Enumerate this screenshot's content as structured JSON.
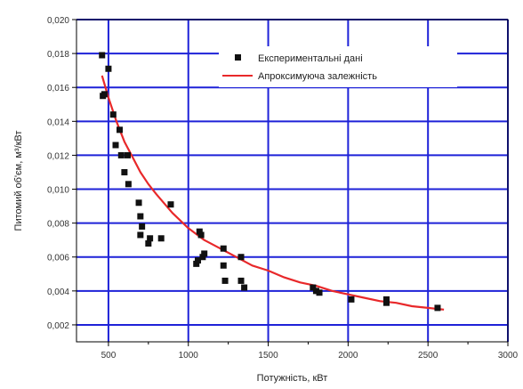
{
  "chart_data": {
    "type": "scatter",
    "title": "",
    "xlabel": "Потужність, кВт",
    "ylabel": "Питомий об'єм, м³/кВт",
    "xlim": [
      300,
      3000
    ],
    "ylim": [
      0.001,
      0.02
    ],
    "xticks": [
      "500",
      "1000",
      "1500",
      "2000",
      "2500",
      "3000"
    ],
    "yticks": [
      "0,002",
      "0,004",
      "0,006",
      "0,008",
      "0,010",
      "0,012",
      "0,014",
      "0,016",
      "0,018",
      "0,020"
    ],
    "grid": true,
    "legend_position": "top-right",
    "series": [
      {
        "name": "Експериментальні дані",
        "type": "scatter",
        "marker": "square",
        "color": "#111111",
        "x": [
          460,
          465,
          475,
          500,
          530,
          545,
          570,
          580,
          600,
          620,
          625,
          690,
          700,
          700,
          710,
          750,
          760,
          830,
          890,
          1050,
          1060,
          1070,
          1080,
          1090,
          1100,
          1220,
          1220,
          1230,
          1330,
          1330,
          1350,
          1780,
          1800,
          1820,
          2020,
          2240,
          2240,
          2560
        ],
        "y": [
          0.0179,
          0.0155,
          0.0156,
          0.0171,
          0.0144,
          0.0126,
          0.0135,
          0.012,
          0.011,
          0.012,
          0.0103,
          0.0092,
          0.0084,
          0.0073,
          0.0078,
          0.0068,
          0.0071,
          0.0071,
          0.0091,
          0.0056,
          0.0058,
          0.0075,
          0.0073,
          0.006,
          0.0062,
          0.0065,
          0.0055,
          0.0046,
          0.0046,
          0.006,
          0.0042,
          0.0042,
          0.004,
          0.0039,
          0.0035,
          0.0035,
          0.0033,
          0.003
        ]
      },
      {
        "name": "Апроксимуюча залежність",
        "type": "line",
        "color": "#e8282a",
        "x": [
          460,
          500,
          550,
          600,
          650,
          700,
          750,
          800,
          900,
          1000,
          1100,
          1200,
          1300,
          1400,
          1500,
          1600,
          1700,
          1800,
          1900,
          2000,
          2100,
          2200,
          2300,
          2400,
          2500,
          2600
        ],
        "y": [
          0.0167,
          0.0154,
          0.014,
          0.0128,
          0.0119,
          0.011,
          0.0103,
          0.0097,
          0.0086,
          0.0077,
          0.007,
          0.0065,
          0.006,
          0.0055,
          0.0052,
          0.0048,
          0.0045,
          0.0043,
          0.004,
          0.0038,
          0.0036,
          0.0034,
          0.0033,
          0.0031,
          0.003,
          0.0029
        ]
      }
    ]
  }
}
